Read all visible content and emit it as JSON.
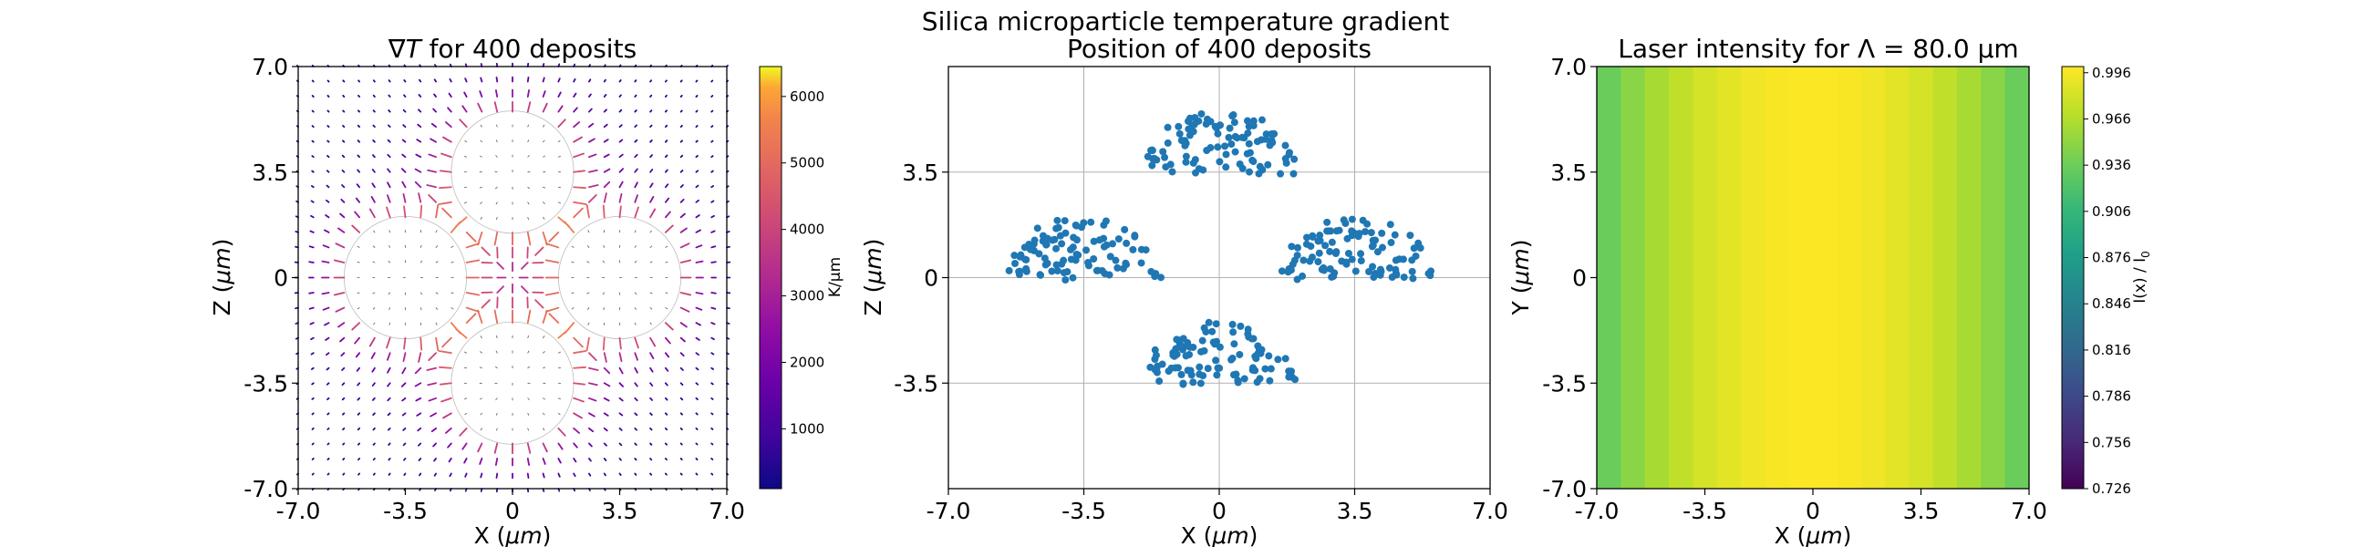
{
  "figure": {
    "suptitle": "Silica microparticle temperature gradient"
  },
  "chart_data": [
    {
      "type": "quiver",
      "title": "∇T for 400 deposits",
      "title_symbol": "∇",
      "title_var": "T",
      "title_rest": " for 400 deposits",
      "xlabel_main": "X (",
      "xlabel_unit": "μm",
      "xlabel_end": ")",
      "ylabel_main": "Z (",
      "ylabel_unit": "μm",
      "ylabel_end": ")",
      "xlim": [
        -7.0,
        7.0
      ],
      "ylim": [
        -7.0,
        7.0
      ],
      "xticks": [
        -7.0,
        -3.5,
        0,
        3.5,
        7.0
      ],
      "xtick_labels": [
        "-7.0",
        "-3.5",
        "0",
        "3.5",
        "7.0"
      ],
      "yticks": [
        -7.0,
        -3.5,
        0,
        3.5,
        7.0
      ],
      "ytick_labels": [
        "-7.0",
        "-3.5",
        "0",
        "3.5",
        "7.0"
      ],
      "particles": [
        {
          "cx": 0,
          "cy": 3.5,
          "r": 2.0
        },
        {
          "cx": 0,
          "cy": -3.5,
          "r": 2.0
        },
        {
          "cx": -3.5,
          "cy": 0,
          "r": 2.0
        },
        {
          "cx": 3.5,
          "cy": 0,
          "r": 2.0
        }
      ],
      "colormap": "plasma",
      "colorbar": {
        "label": "K/μm",
        "range": [
          100,
          6450
        ],
        "ticks": [
          1000,
          2000,
          3000,
          4000,
          5000,
          6000
        ],
        "tick_labels": [
          "1000",
          "2000",
          "3000",
          "4000",
          "5000",
          "6000"
        ]
      }
    },
    {
      "type": "scatter",
      "title": "Position of 400 deposits",
      "xlabel_main": "X (",
      "xlabel_unit": "μm",
      "xlabel_end": ")",
      "ylabel_main": "Z (",
      "ylabel_unit": "μm",
      "ylabel_end": ")",
      "xlim": [
        -7.0,
        7.0
      ],
      "ylim": [
        -7.0,
        7.0
      ],
      "xticks": [
        -7.0,
        -3.5,
        0,
        3.5,
        7.0
      ],
      "xtick_labels": [
        "-7.0",
        "-3.5",
        "0",
        "3.5",
        "7.0"
      ],
      "yticks": [
        -3.5,
        0,
        3.5
      ],
      "ytick_labels": [
        "-3.5",
        "0",
        "3.5"
      ],
      "grid": true,
      "color": "#1f77b4",
      "point_count": 400,
      "clusters": [
        {
          "cx": 0,
          "cy": 3.5,
          "r": 2.0
        },
        {
          "cx": -3.5,
          "cy": 0,
          "r": 2.0
        },
        {
          "cx": 3.5,
          "cy": 0,
          "r": 2.0
        },
        {
          "cx": 0,
          "cy": -3.5,
          "r": 2.0
        }
      ]
    },
    {
      "type": "heatmap",
      "title": "Laser intensity for Λ = 80.0 μm",
      "xlabel_main": "X (",
      "xlabel_unit": "μm",
      "xlabel_end": ")",
      "ylabel_main": "Y (",
      "ylabel_unit": "μm",
      "ylabel_end": ")",
      "xlim": [
        -7.0,
        7.0
      ],
      "ylim": [
        -7.0,
        7.0
      ],
      "xticks": [
        -7.0,
        -3.5,
        0,
        3.5,
        7.0
      ],
      "xtick_labels": [
        "-7.0",
        "-3.5",
        "0",
        "3.5",
        "7.0"
      ],
      "yticks": [
        -7.0,
        -3.5,
        0,
        3.5,
        7.0
      ],
      "ytick_labels": [
        "-7.0",
        "-3.5",
        "0",
        "3.5",
        "7.0"
      ],
      "period_um": 80.0,
      "colormap": "viridis",
      "colorbar": {
        "label": "I(x) / I",
        "label_sub": "0",
        "range": [
          0.726,
          1.0
        ],
        "ticks": [
          0.726,
          0.756,
          0.786,
          0.816,
          0.846,
          0.876,
          0.906,
          0.936,
          0.966,
          0.996
        ],
        "tick_labels": [
          "0.726",
          "0.756",
          "0.786",
          "0.816",
          "0.846",
          "0.876",
          "0.906",
          "0.936",
          "0.966",
          "0.996"
        ]
      }
    }
  ]
}
